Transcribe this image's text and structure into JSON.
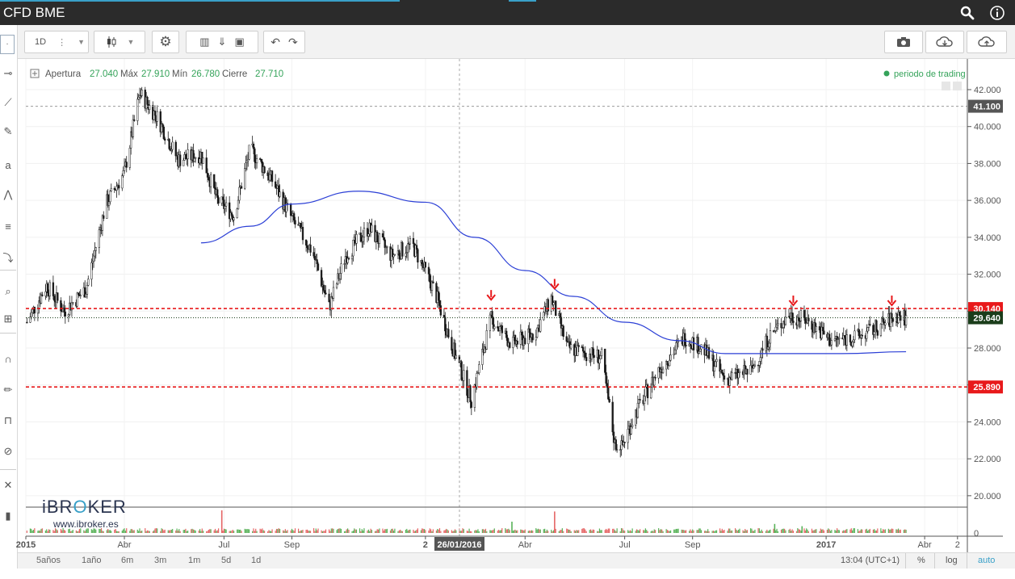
{
  "window": {
    "title": "CFD BME"
  },
  "toolbar": {
    "interval": "1D"
  },
  "legend": {
    "open_label": "Apertura",
    "open_value": "27.040",
    "high_label": "Máx",
    "high_value": "27.910",
    "low_label": "Mín",
    "low_value": "26.780",
    "close_label": "Cierre",
    "close_value": "27.710",
    "session_label": "periodo de trading"
  },
  "watermark": {
    "brand": "iBROKER",
    "url": "www.ibroker.es"
  },
  "crosshair": {
    "date_label": "26/01/2016",
    "price_label": "41.100"
  },
  "time_axis": {
    "labels": [
      {
        "text": "2015",
        "bold": true
      },
      {
        "text": "Abr",
        "bold": false
      },
      {
        "text": "Jul",
        "bold": false
      },
      {
        "text": "Sep",
        "bold": false
      },
      {
        "text": "2",
        "bold": true
      },
      {
        "text": "Abr",
        "bold": false
      },
      {
        "text": "Jul",
        "bold": false
      },
      {
        "text": "Sep",
        "bold": false
      },
      {
        "text": "2017",
        "bold": true
      },
      {
        "text": "Abr",
        "bold": false
      },
      {
        "text": "2",
        "bold": false
      }
    ]
  },
  "price_labels": {
    "resistance": "30.140",
    "last": "29.640",
    "support": "25.890",
    "volume_zero": "0"
  },
  "bottom": {
    "ranges": [
      "5años",
      "1año",
      "6m",
      "3m",
      "1m",
      "5d",
      "1d"
    ],
    "time": "13:04 (UTC+1)",
    "percent": "%",
    "log": "log",
    "auto": "auto"
  },
  "colors": {
    "background": "#ffffff",
    "titlebar": "#2b2b2b",
    "candle": "#1a1a1a",
    "moving_average": "#2b3fd6",
    "resistance_support": "#e8191b",
    "last_price": "#1a3d1a",
    "volume_up": "#59b259",
    "volume_down": "#e56565",
    "arrow": "#e8191b",
    "session_dot": "#35a35a"
  },
  "chart_data": {
    "type": "candlestick",
    "y_axis": {
      "ticks": [
        20,
        22,
        24,
        26,
        28,
        30,
        32,
        34,
        36,
        38,
        40,
        42
      ],
      "range": [
        19.6,
        43.4
      ]
    },
    "x_range": [
      "2015-01",
      "2017-05"
    ],
    "price_path": [
      {
        "date": "2015-01-02",
        "price": 29.4
      },
      {
        "date": "2015-01-20",
        "price": 31.4
      },
      {
        "date": "2015-02-05",
        "price": 30.0
      },
      {
        "date": "2015-02-25",
        "price": 31.2
      },
      {
        "date": "2015-03-15",
        "price": 35.8
      },
      {
        "date": "2015-04-01",
        "price": 37.5
      },
      {
        "date": "2015-04-15",
        "price": 41.8
      },
      {
        "date": "2015-05-01",
        "price": 40.5
      },
      {
        "date": "2015-05-20",
        "price": 38.2
      },
      {
        "date": "2015-06-10",
        "price": 38.5
      },
      {
        "date": "2015-06-25",
        "price": 36.0
      },
      {
        "date": "2015-07-10",
        "price": 35.2
      },
      {
        "date": "2015-07-25",
        "price": 38.8
      },
      {
        "date": "2015-08-15",
        "price": 37.0
      },
      {
        "date": "2015-09-01",
        "price": 35.0
      },
      {
        "date": "2015-09-20",
        "price": 33.2
      },
      {
        "date": "2015-10-05",
        "price": 30.2
      },
      {
        "date": "2015-10-20",
        "price": 33.0
      },
      {
        "date": "2015-11-10",
        "price": 34.5
      },
      {
        "date": "2015-12-01",
        "price": 33.0
      },
      {
        "date": "2015-12-20",
        "price": 33.6
      },
      {
        "date": "2016-01-10",
        "price": 31.0
      },
      {
        "date": "2016-01-26",
        "price": 28.0
      },
      {
        "date": "2016-02-12",
        "price": 25.2
      },
      {
        "date": "2016-03-01",
        "price": 29.6
      },
      {
        "date": "2016-03-20",
        "price": 28.2
      },
      {
        "date": "2016-04-10",
        "price": 28.8
      },
      {
        "date": "2016-04-25",
        "price": 30.7
      },
      {
        "date": "2016-05-10",
        "price": 28.0
      },
      {
        "date": "2016-06-10",
        "price": 27.5
      },
      {
        "date": "2016-06-24",
        "price": 22.0
      },
      {
        "date": "2016-07-10",
        "price": 24.4
      },
      {
        "date": "2016-08-01",
        "price": 26.8
      },
      {
        "date": "2016-08-25",
        "price": 28.6
      },
      {
        "date": "2016-09-10",
        "price": 28.0
      },
      {
        "date": "2016-10-01",
        "price": 26.3
      },
      {
        "date": "2016-10-25",
        "price": 26.8
      },
      {
        "date": "2016-11-10",
        "price": 28.6
      },
      {
        "date": "2016-11-28",
        "price": 29.8
      },
      {
        "date": "2016-12-15",
        "price": 29.5
      },
      {
        "date": "2017-01-05",
        "price": 28.4
      },
      {
        "date": "2017-01-30",
        "price": 28.6
      },
      {
        "date": "2017-02-20",
        "price": 29.2
      },
      {
        "date": "2017-03-08",
        "price": 29.8
      },
      {
        "date": "2017-03-15",
        "price": 29.6
      }
    ],
    "moving_average": [
      {
        "date": "2015-06-10",
        "value": 33.7
      },
      {
        "date": "2015-07-25",
        "value": 34.6
      },
      {
        "date": "2015-09-01",
        "value": 35.8
      },
      {
        "date": "2015-11-01",
        "value": 36.5
      },
      {
        "date": "2016-01-01",
        "value": 35.9
      },
      {
        "date": "2016-02-15",
        "value": 34.0
      },
      {
        "date": "2016-04-01",
        "value": 32.2
      },
      {
        "date": "2016-05-15",
        "value": 30.8
      },
      {
        "date": "2016-07-01",
        "value": 29.4
      },
      {
        "date": "2016-08-20",
        "value": 28.4
      },
      {
        "date": "2016-10-01",
        "value": 27.7
      },
      {
        "date": "2016-11-15",
        "value": 27.7
      },
      {
        "date": "2017-01-15",
        "value": 27.7
      },
      {
        "date": "2017-03-15",
        "value": 27.8
      }
    ],
    "horizontal_lines": [
      {
        "value": 30.14,
        "style": "dashed",
        "color": "#e8191b"
      },
      {
        "value": 29.64,
        "style": "dotted",
        "color": "#1a3d1a"
      },
      {
        "value": 25.89,
        "style": "dashed",
        "color": "#e8191b"
      },
      {
        "value": 41.1,
        "style": "dashed",
        "color": "#9a9a9a"
      }
    ],
    "down_arrows": [
      {
        "date": "2016-03-01",
        "price": 30.4
      },
      {
        "date": "2016-04-28",
        "price": 31.0
      },
      {
        "date": "2016-12-02",
        "price": 30.1
      },
      {
        "date": "2017-03-02",
        "price": 30.1
      }
    ],
    "volume_spikes": [
      {
        "date": "2015-06-29",
        "height": 1.0
      },
      {
        "date": "2016-03-20",
        "height": 0.5
      },
      {
        "date": "2016-04-28",
        "height": 0.95
      },
      {
        "date": "2016-11-15",
        "height": 0.4
      },
      {
        "date": "2016-12-10",
        "height": 0.3
      }
    ]
  }
}
